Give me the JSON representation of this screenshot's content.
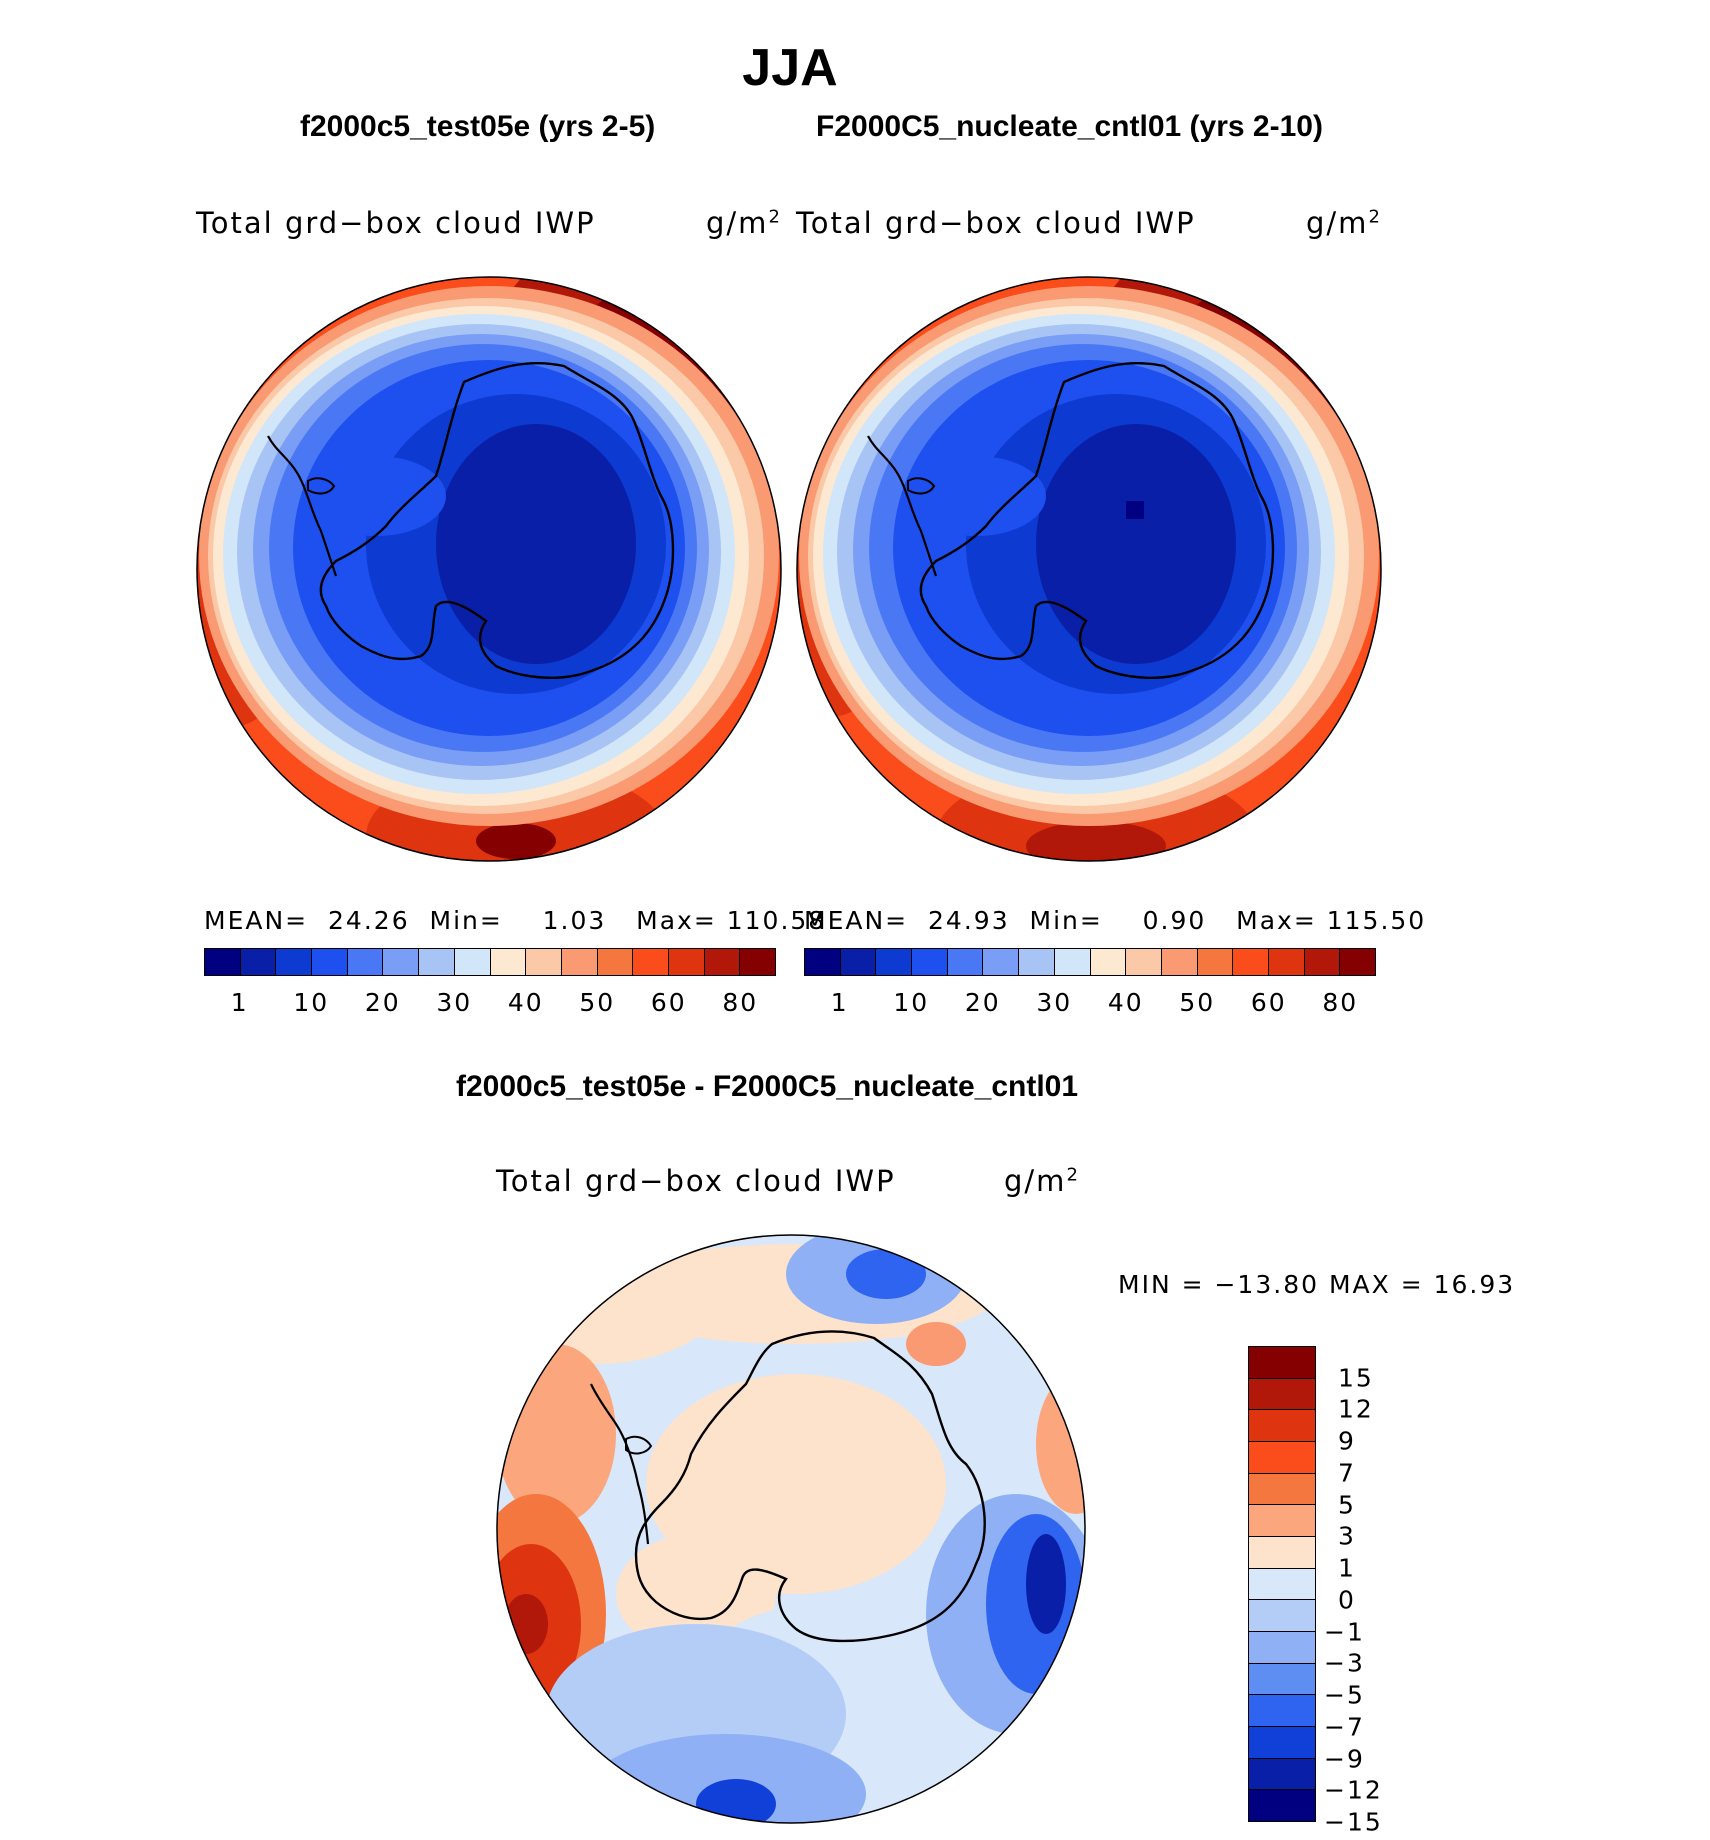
{
  "figure": {
    "title": "JJA"
  },
  "panels": {
    "left": {
      "title": "f2000c5_test05e (yrs 2-5)",
      "variable": "Total grd−box cloud IWP",
      "unit": "g/m",
      "unit_exp": "2",
      "mean_label": "MEAN=",
      "mean": "24.26",
      "min_label": "Min=",
      "min": "1.03",
      "max_label": "Max=",
      "max": "110.58"
    },
    "right": {
      "title": "F2000C5_nucleate_cntl01 (yrs 2-10)",
      "variable": "Total grd−box cloud IWP",
      "unit": "g/m",
      "unit_exp": "2",
      "mean_label": "MEAN=",
      "mean": "24.93",
      "min_label": "Min=",
      "min": "0.90",
      "max_label": "Max=",
      "max": "115.50"
    },
    "diff": {
      "title": "f2000c5_test05e - F2000C5_nucleate_cntl01",
      "variable": "Total grd−box cloud IWP",
      "unit": "g/m",
      "unit_exp": "2",
      "minmax": "MIN = −13.80 MAX =   16.93"
    }
  },
  "colorbars": {
    "abs": {
      "colors": [
        "#000080",
        "#0a1fa8",
        "#0d3bd1",
        "#1e50f0",
        "#4a78f5",
        "#7a9ef5",
        "#a8c4f5",
        "#d2e6fa",
        "#fde8d2",
        "#fbc9a8",
        "#f99a72",
        "#f4773f",
        "#fa4d1b",
        "#de3510",
        "#b2180a",
        "#850000"
      ],
      "tick_labels": [
        "1",
        "10",
        "20",
        "30",
        "40",
        "50",
        "60",
        "80"
      ]
    },
    "diff": {
      "colors": [
        "#850000",
        "#b2180a",
        "#de3510",
        "#fa4d1b",
        "#f4773f",
        "#fba67d",
        "#fde2cc",
        "#d8e8fa",
        "#b4cdf7",
        "#8fb0f5",
        "#5f8ef3",
        "#2e64f0",
        "#1040d8",
        "#0a1fa8",
        "#000080"
      ],
      "tick_labels": [
        "15",
        "12",
        "9",
        "7",
        "5",
        "3",
        "1",
        "0",
        "−1",
        "−3",
        "−5",
        "−7",
        "−9",
        "−12",
        "−15"
      ]
    }
  }
}
